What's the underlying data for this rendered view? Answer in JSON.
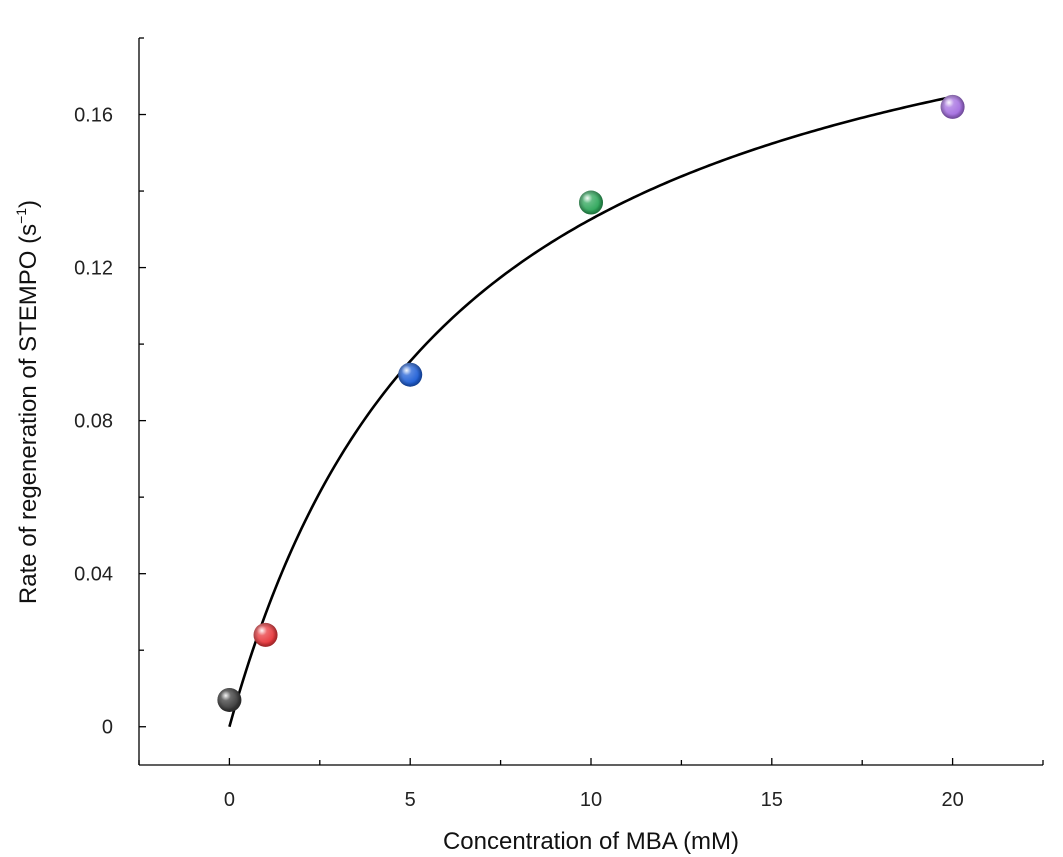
{
  "chart_data": {
    "type": "scatter",
    "title": "",
    "xlabel": "Concentration of MBA (mM)",
    "ylabel_main": "Rate of regeneration of STEMPO (s",
    "ylabel_sup": "−1",
    "ylabel_close": ")",
    "xlim": [
      -2.5,
      22.5
    ],
    "ylim": [
      -0.01,
      0.18
    ],
    "x_ticks": [
      {
        "value": 0,
        "label": "0"
      },
      {
        "value": 5,
        "label": "5"
      },
      {
        "value": 10,
        "label": "10"
      },
      {
        "value": 15,
        "label": "15"
      },
      {
        "value": 20,
        "label": "20"
      }
    ],
    "x_minor_ticks": [
      -2.5,
      2.5,
      7.5,
      12.5,
      17.5,
      22.5
    ],
    "y_ticks": [
      {
        "value": 0,
        "label": "0"
      },
      {
        "value": 0.04,
        "label": "0.04"
      },
      {
        "value": 0.08,
        "label": "0.08"
      },
      {
        "value": 0.12,
        "label": "0.12"
      },
      {
        "value": 0.16,
        "label": "0.16"
      }
    ],
    "y_minor_ticks": [
      0.02,
      0.06,
      0.1,
      0.14,
      0.18
    ],
    "points": [
      {
        "x": 0,
        "y": 0.007,
        "color": "#3c3c3c"
      },
      {
        "x": 1,
        "y": 0.024,
        "color": "#e8383d"
      },
      {
        "x": 5,
        "y": 0.092,
        "color": "#1f5fd6"
      },
      {
        "x": 10,
        "y": 0.137,
        "color": "#2ea65a"
      },
      {
        "x": 20,
        "y": 0.162,
        "color": "#a46ee0"
      }
    ],
    "fit": {
      "model": "michaelis-menten",
      "vmax": 0.217,
      "km": 6.36,
      "x_range": [
        0,
        20
      ],
      "color": "#000000"
    },
    "grid": false,
    "legend": "none"
  }
}
